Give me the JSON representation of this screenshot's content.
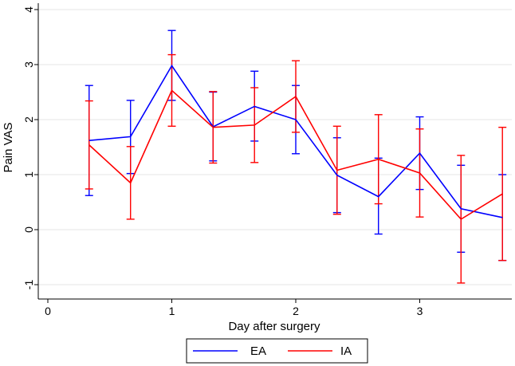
{
  "chart_data": {
    "type": "line",
    "xlabel": "Day after surgery",
    "ylabel": "Pain VAS",
    "xlim": [
      -0.05,
      3.72
    ],
    "ylim": [
      -1.15,
      4.1
    ],
    "xticks": [
      0,
      1,
      2,
      3
    ],
    "xtick_labels": [
      "0",
      "1",
      "2",
      "3"
    ],
    "yticks": [
      -1,
      0,
      1,
      2,
      3,
      4
    ],
    "ytick_labels": [
      "-1",
      "0",
      "1",
      "2",
      "3",
      "4"
    ],
    "grid": "horizontal",
    "legend_position": "bottom",
    "x": [
      0.333,
      0.667,
      1.0,
      1.333,
      1.667,
      2.0,
      2.333,
      2.667,
      3.0,
      3.333,
      3.667
    ],
    "series": [
      {
        "name": "EA",
        "color": "#0000ff",
        "values": [
          1.62,
          1.69,
          2.98,
          1.87,
          2.24,
          2.0,
          0.99,
          0.6,
          1.39,
          0.38,
          0.22
        ],
        "lower": [
          0.62,
          1.02,
          2.35,
          1.25,
          1.61,
          1.38,
          0.31,
          -0.08,
          0.73,
          -0.41,
          -0.56
        ],
        "upper": [
          2.62,
          2.35,
          3.62,
          2.5,
          2.88,
          2.62,
          1.67,
          1.3,
          2.05,
          1.17,
          1.0
        ]
      },
      {
        "name": "IA",
        "color": "#ff0000",
        "values": [
          1.54,
          0.85,
          2.53,
          1.86,
          1.9,
          2.42,
          1.08,
          1.28,
          1.03,
          0.19,
          0.65
        ],
        "lower": [
          0.74,
          0.19,
          1.88,
          1.21,
          1.22,
          1.77,
          0.28,
          0.47,
          0.23,
          -0.97,
          -0.56
        ],
        "upper": [
          2.34,
          1.51,
          3.18,
          2.51,
          2.58,
          3.07,
          1.88,
          2.09,
          1.83,
          1.35,
          1.86
        ]
      }
    ]
  }
}
